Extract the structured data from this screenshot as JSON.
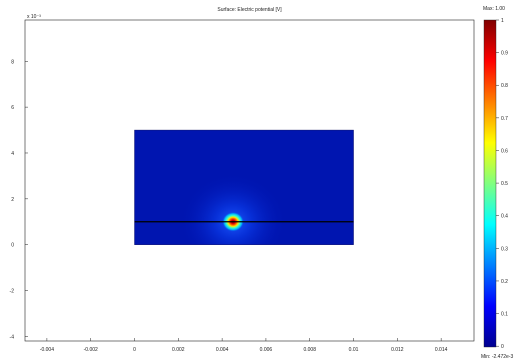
{
  "chart_data": {
    "type": "heatmap",
    "title": "Surface: Electric potential [V]",
    "xlabel": "",
    "ylabel": "",
    "y_exponent": "x 10⁻³",
    "xlim": [
      -0.005,
      0.0155
    ],
    "ylim": [
      -0.0042,
      0.0098
    ],
    "x_ticks": [
      -0.004,
      -0.002,
      0,
      0.002,
      0.004,
      0.006,
      0.008,
      0.01,
      0.012,
      0.014
    ],
    "x_tick_labels": [
      "-0.004",
      "-0.002",
      "0",
      "0.002",
      "0.004",
      "0.006",
      "0.008",
      "0.01",
      "0.012",
      "0.014"
    ],
    "y_ticks": [
      -0.004,
      -0.002,
      0,
      0.002,
      0.004,
      0.006,
      0.008
    ],
    "y_tick_labels": [
      "-4",
      "-2",
      "0",
      "2",
      "4",
      "6",
      "8"
    ],
    "domain": {
      "x": [
        0,
        0.01
      ],
      "y": [
        0,
        0.005
      ]
    },
    "source": {
      "x": 0.0045,
      "y": 0.001,
      "value": 1.0
    },
    "electrode_line_y": 0.001,
    "colormap": "jet",
    "colorbar": {
      "max_label": "Max: 1.00",
      "min_label": "Min: -2.472e-3",
      "ticks": [
        0,
        0.1,
        0.2,
        0.3,
        0.4,
        0.5,
        0.6,
        0.7,
        0.8,
        0.9,
        1
      ],
      "tick_labels": [
        "0",
        "0.1",
        "0.2",
        "0.3",
        "0.4",
        "0.5",
        "0.6",
        "0.7",
        "0.8",
        "0.9",
        "1"
      ],
      "range": [
        -0.002472,
        1.0
      ]
    },
    "grid": false
  }
}
